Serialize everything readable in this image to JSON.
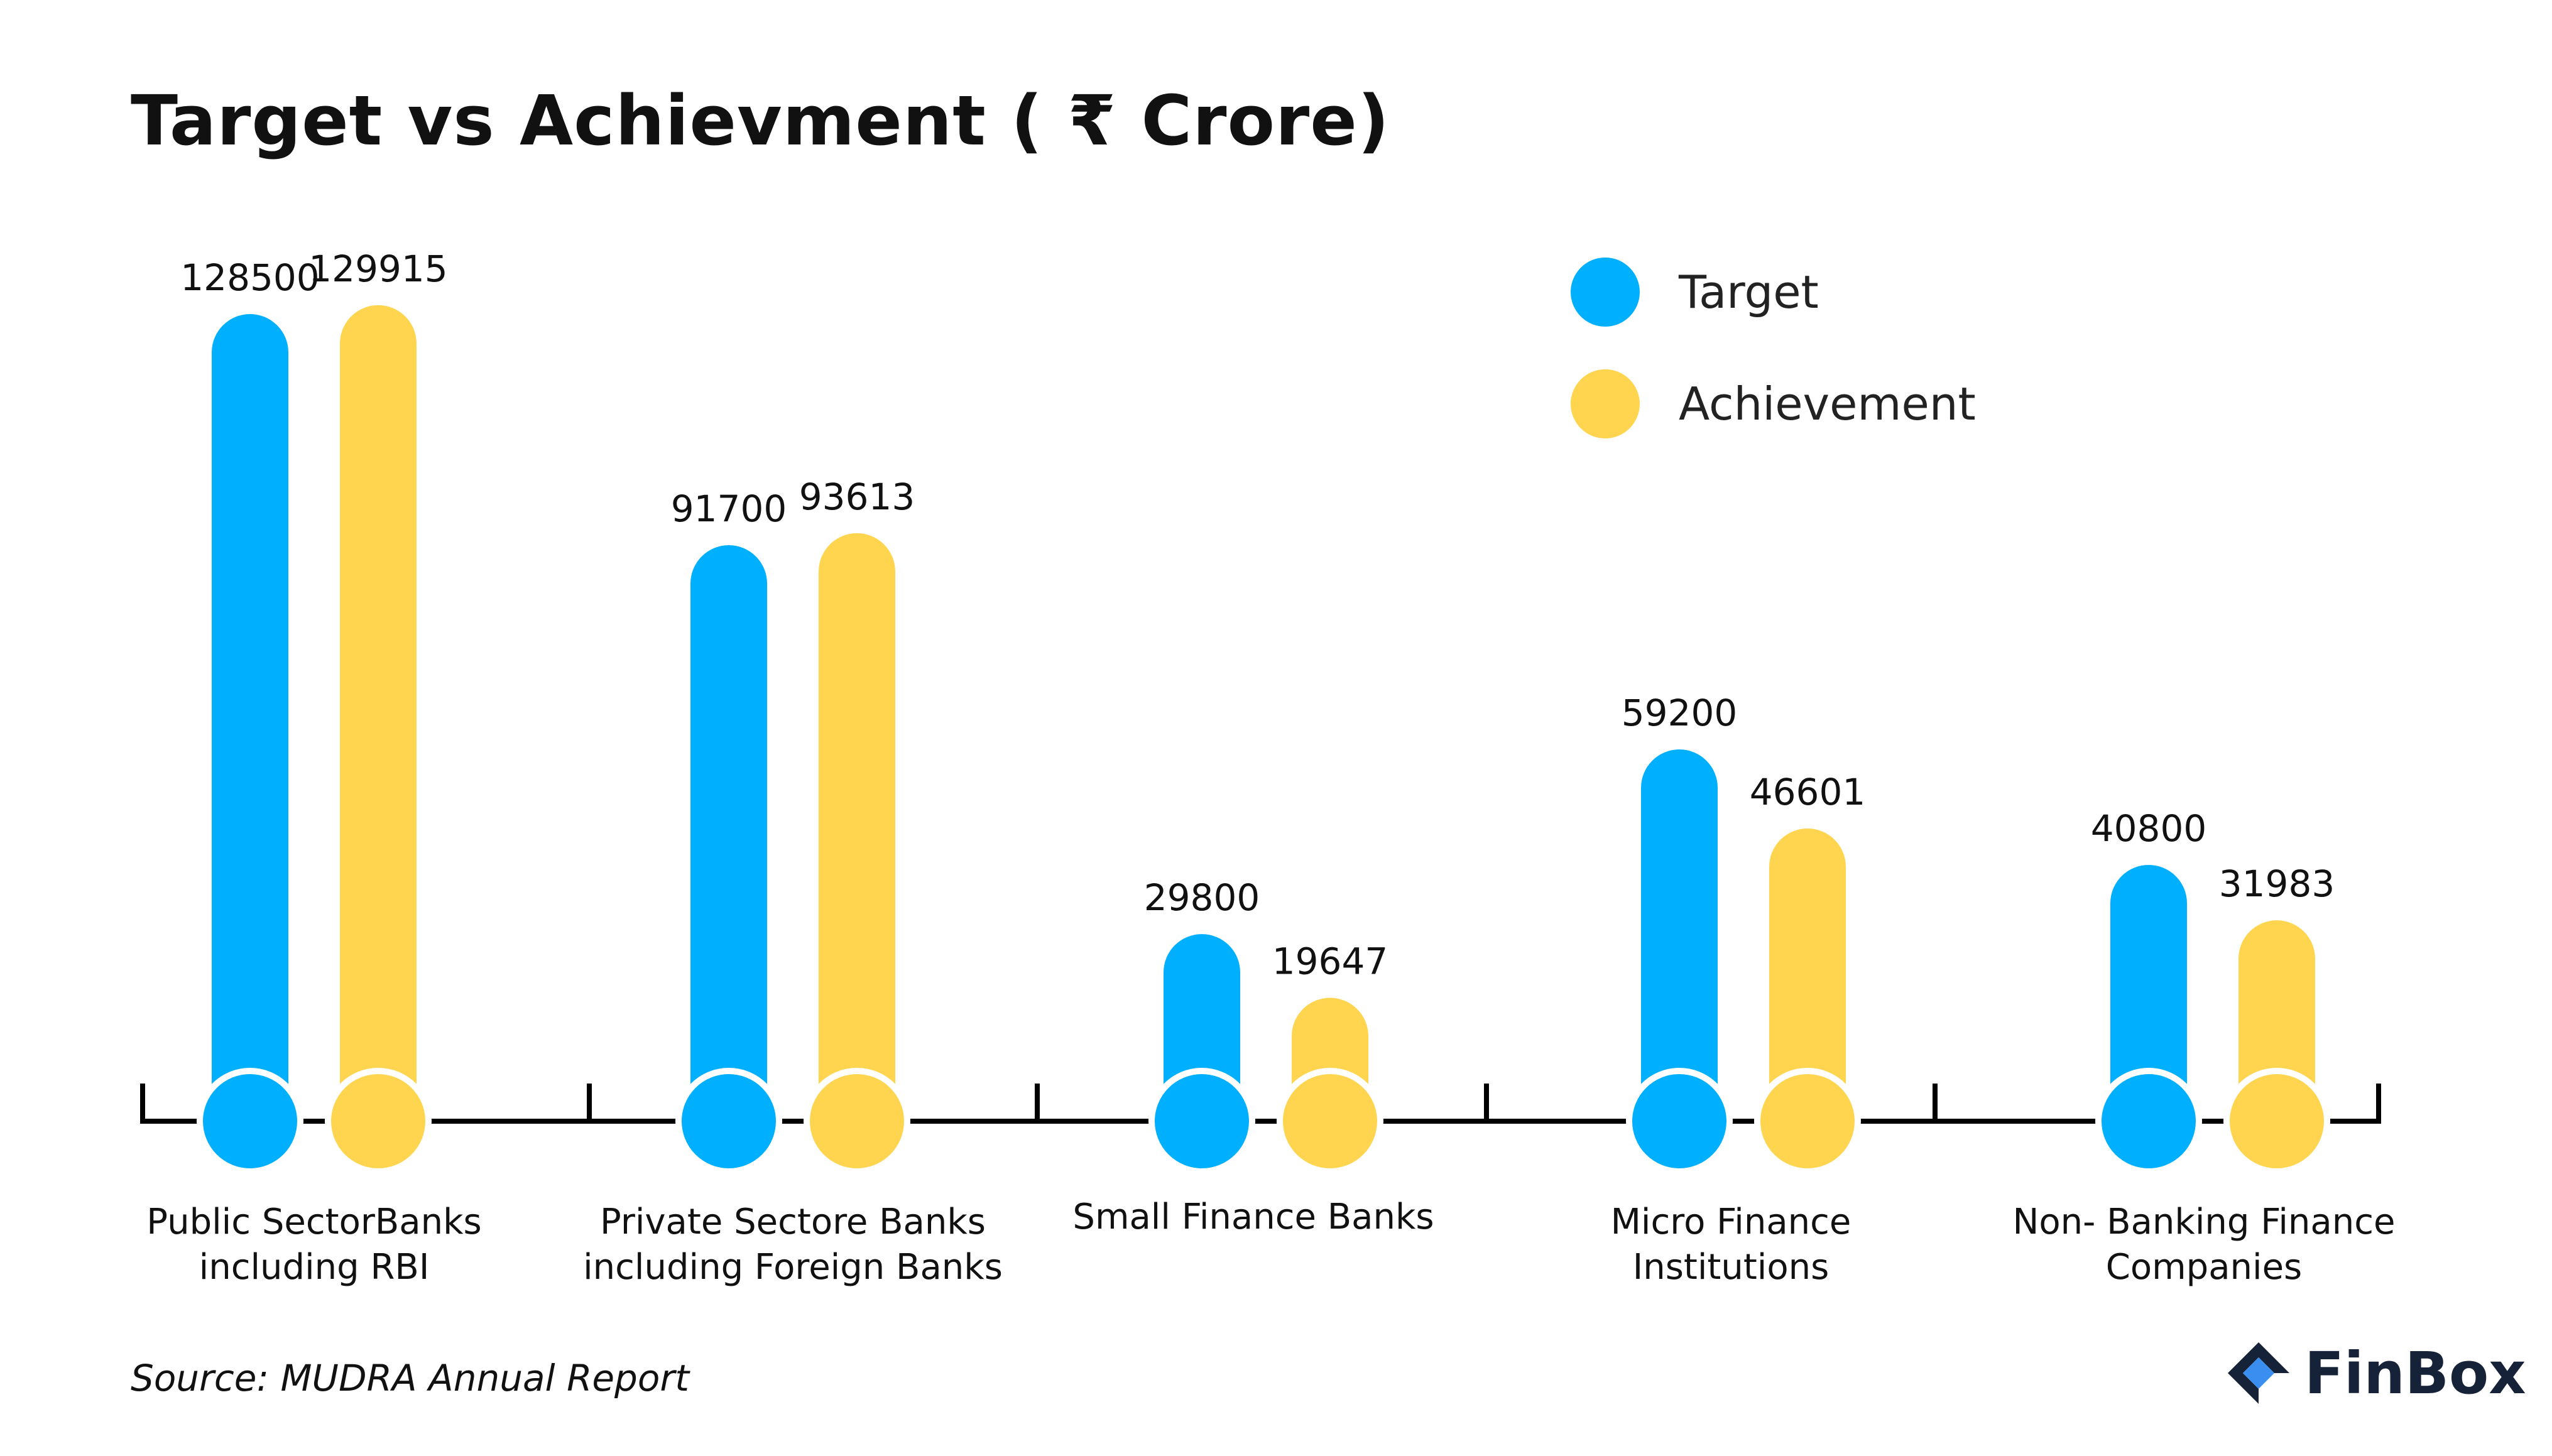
{
  "title": "Target vs Achievment ( ₹ Crore)",
  "source": "Source: MUDRA Annual Report",
  "brand": {
    "name": "FinBox",
    "color": "#152238",
    "accent": "#3a8ef0",
    "icon": "finbox-logo-icon"
  },
  "colors": {
    "target": "#00b0ff",
    "achievement": "#ffd54f",
    "axis": "#000000"
  },
  "chart_data": {
    "type": "bar",
    "title": "Target vs Achievment ( ₹ Crore)",
    "categories": [
      [
        "Public SectorBanks",
        "including RBI"
      ],
      [
        "Private Sectore Banks",
        "including Foreign Banks"
      ],
      [
        "Small Finance Banks"
      ],
      [
        "Micro Finance",
        "Institutions"
      ],
      [
        "Non- Banking Finance",
        "Companies"
      ]
    ],
    "series": [
      {
        "name": "Target",
        "values": [
          128500,
          91700,
          29800,
          59200,
          40800
        ]
      },
      {
        "name": "Achievement",
        "values": [
          129915,
          93613,
          19647,
          46601,
          31983
        ]
      }
    ],
    "data_labels": {
      "Target": [
        "128500",
        "91700",
        "29800",
        "59200",
        "40800"
      ],
      "Achievement": [
        "129915",
        "93613",
        "19647",
        "46601",
        "31983"
      ]
    },
    "ylim": [
      0,
      130000
    ],
    "xlabel": "",
    "ylabel": "",
    "legend": "top-right",
    "grid": false
  }
}
